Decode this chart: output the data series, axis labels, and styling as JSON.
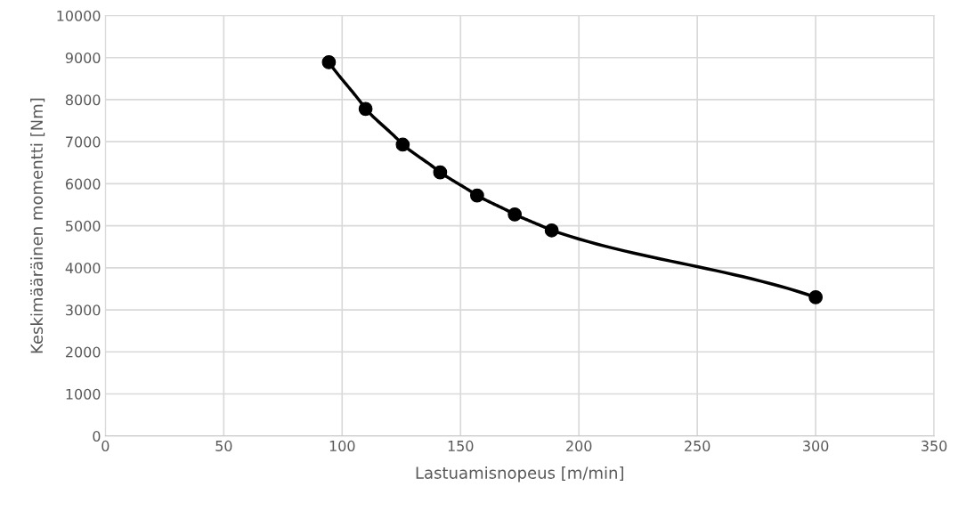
{
  "chart_data": {
    "type": "line",
    "xlabel": "Lastuamisnopeus [m/min]",
    "ylabel": "Keskimääräinen momentti [Nm]",
    "series": [
      {
        "color": "#000000",
        "x": [
          94.4,
          109.9,
          125.6,
          141.4,
          157.0,
          172.9,
          188.5,
          300
        ],
        "values": [
          8890,
          7780,
          6930,
          6270,
          5720,
          5270,
          4890,
          3300
        ]
      }
    ],
    "xlim": [
      0,
      350
    ],
    "xticks": [
      0,
      50,
      100,
      150,
      200,
      250,
      300,
      350
    ],
    "ylim": [
      0,
      10000
    ],
    "yticks": [
      0,
      1000,
      2000,
      3000,
      4000,
      5000,
      6000,
      7000,
      8000,
      9000,
      10000
    ],
    "grid": true,
    "marker": "circle",
    "line_style": "solid"
  }
}
